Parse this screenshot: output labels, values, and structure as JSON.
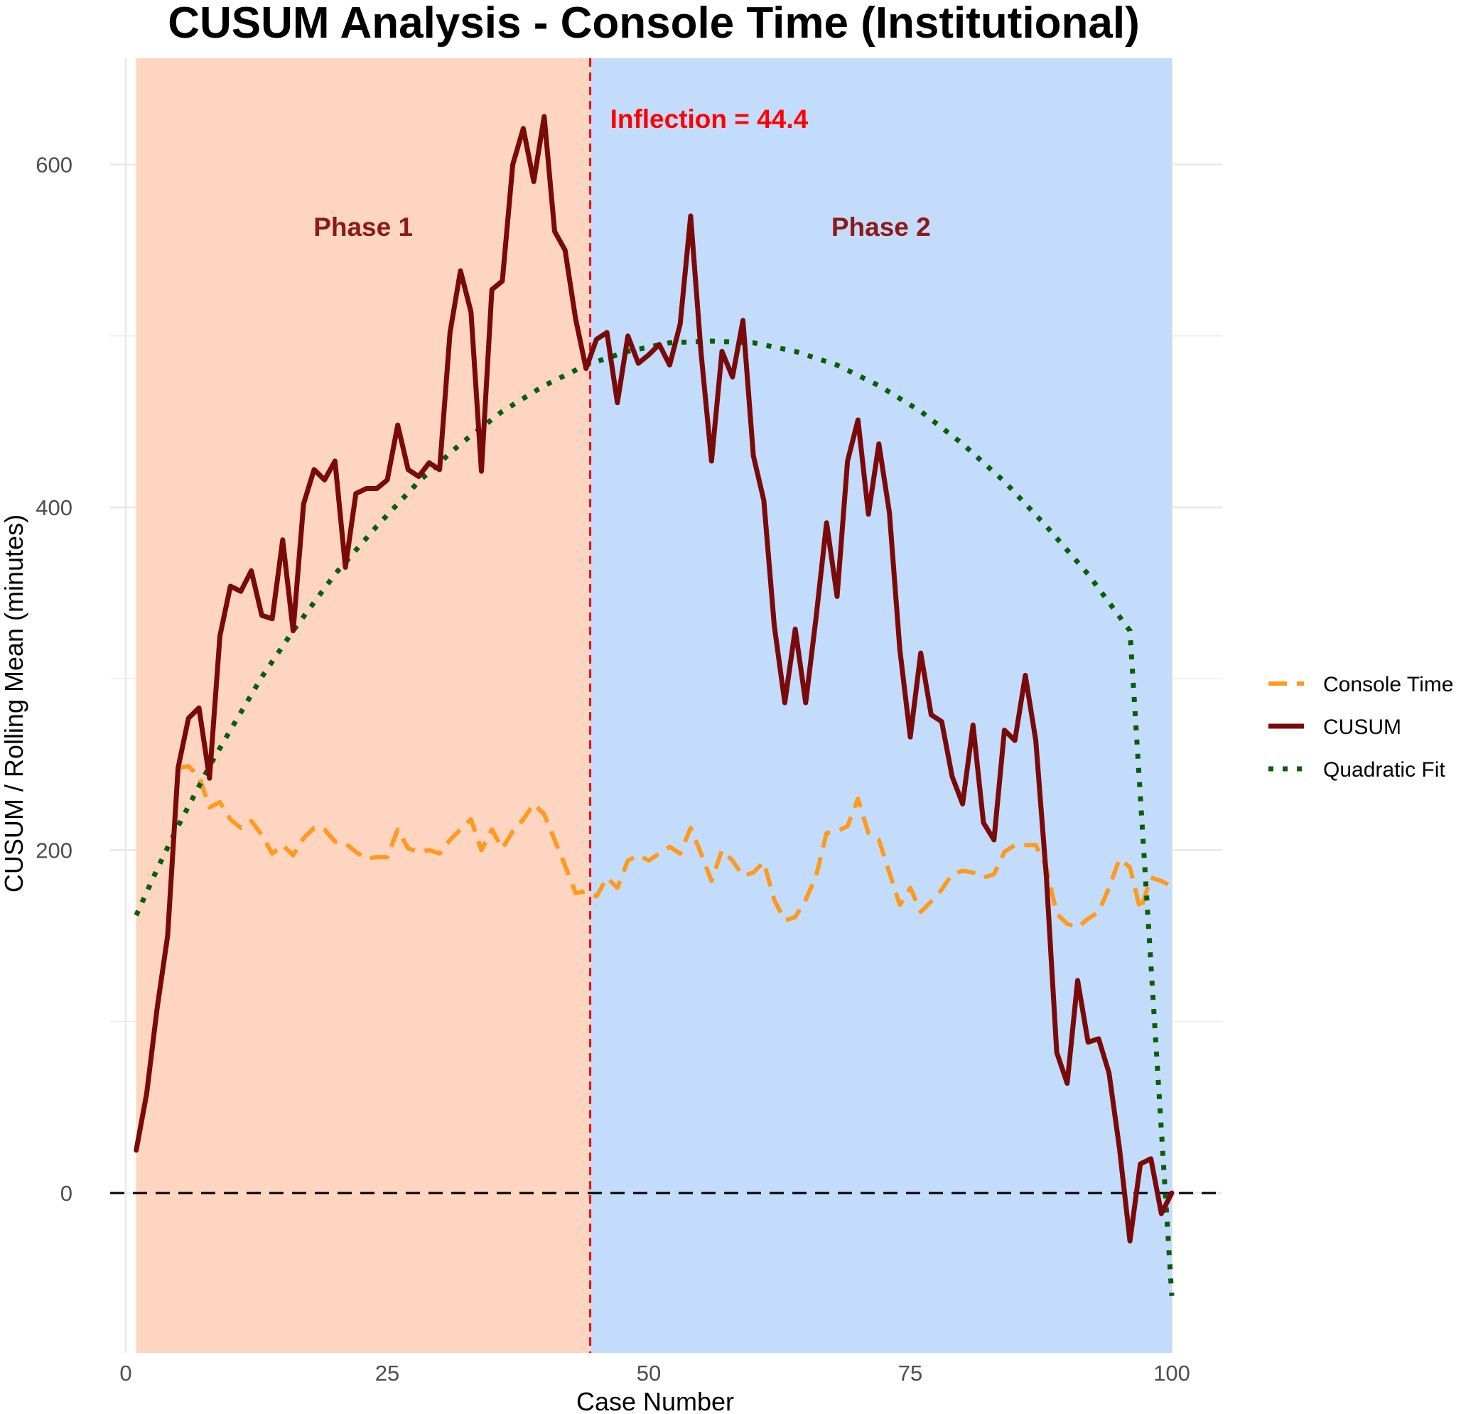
{
  "chart_data": {
    "type": "line",
    "title": "CUSUM Analysis - Console Time (Institutional)",
    "xlabel": "Case Number",
    "ylabel": "CUSUM / Rolling Mean (minutes)",
    "xlim": [
      0,
      100
    ],
    "ylim": [
      -90,
      655
    ],
    "x_ticks": [
      0,
      25,
      50,
      75,
      100
    ],
    "y_ticks": [
      0,
      200,
      400,
      600
    ],
    "grid": true,
    "legend_position": "right",
    "inflection": {
      "x": 44.4,
      "label": "Inflection = 44.4",
      "color": "#ff0000"
    },
    "zero_line": 0,
    "phases": [
      {
        "label": "Phase 1",
        "start": 1,
        "end": 44.4,
        "color": "#fdd5c0"
      },
      {
        "label": "Phase 2",
        "start": 44.4,
        "end": 100,
        "color": "#c4dcfb"
      }
    ],
    "series": [
      {
        "name": "Console Time",
        "style": "dashed",
        "color": "#ff9a1f",
        "x": [
          5,
          6,
          7,
          8,
          9,
          10,
          11,
          12,
          13,
          14,
          15,
          16,
          17,
          18,
          19,
          20,
          21,
          22,
          23,
          24,
          25,
          26,
          27,
          28,
          29,
          30,
          31,
          32,
          33,
          34,
          35,
          36,
          37,
          38,
          39,
          40,
          41,
          42,
          43,
          44,
          45,
          46,
          47,
          48,
          49,
          50,
          51,
          52,
          53,
          54,
          55,
          56,
          57,
          58,
          59,
          60,
          61,
          62,
          63,
          64,
          65,
          66,
          67,
          68,
          69,
          70,
          71,
          72,
          73,
          74,
          75,
          76,
          77,
          78,
          79,
          80,
          81,
          82,
          83,
          84,
          85,
          86,
          87,
          88,
          89,
          90,
          91,
          92,
          93,
          94,
          95,
          96,
          97,
          98,
          99,
          100
        ],
        "values": [
          248,
          249,
          243,
          225,
          228,
          218,
          213,
          217,
          209,
          198,
          203,
          197,
          207,
          213,
          212,
          205,
          204,
          199,
          195,
          196,
          196,
          212,
          201,
          199,
          200,
          198,
          206,
          212,
          218,
          200,
          212,
          201,
          211,
          218,
          227,
          221,
          206,
          191,
          175,
          176,
          173,
          184,
          178,
          194,
          197,
          194,
          198,
          202,
          198,
          213,
          198,
          182,
          200,
          194,
          185,
          187,
          193,
          171,
          159,
          161,
          171,
          185,
          210,
          211,
          214,
          230,
          210,
          206,
          187,
          168,
          178,
          164,
          170,
          177,
          186,
          188,
          187,
          184,
          186,
          199,
          203,
          203,
          203,
          190,
          163,
          157,
          155,
          160,
          164,
          178,
          195,
          190,
          165,
          184,
          182,
          179
        ]
      },
      {
        "name": "CUSUM",
        "style": "solid",
        "color": "#7a0a0a",
        "x": [
          1,
          2,
          3,
          4,
          5,
          6,
          7,
          8,
          9,
          10,
          11,
          12,
          13,
          14,
          15,
          16,
          17,
          18,
          19,
          20,
          21,
          22,
          23,
          24,
          25,
          26,
          27,
          28,
          29,
          30,
          31,
          32,
          33,
          34,
          35,
          36,
          37,
          38,
          39,
          40,
          41,
          42,
          43,
          44,
          45,
          46,
          47,
          48,
          49,
          50,
          51,
          52,
          53,
          54,
          55,
          56,
          57,
          58,
          59,
          60,
          61,
          62,
          63,
          64,
          65,
          66,
          67,
          68,
          69,
          70,
          71,
          72,
          73,
          74,
          75,
          76,
          77,
          78,
          79,
          80,
          81,
          82,
          83,
          84,
          85,
          86,
          87,
          88,
          89,
          90,
          91,
          92,
          93,
          94,
          95,
          96,
          97,
          98,
          99,
          100
        ],
        "values": [
          25,
          58,
          108,
          150,
          248,
          277,
          283,
          242,
          325,
          354,
          351,
          363,
          337,
          335,
          381,
          328,
          402,
          422,
          416,
          427,
          365,
          408,
          411,
          411,
          416,
          448,
          422,
          418,
          426,
          422,
          502,
          538,
          514,
          421,
          527,
          532,
          600,
          621,
          590,
          628,
          561,
          550,
          510,
          481,
          498,
          502,
          461,
          500,
          484,
          489,
          495,
          483,
          507,
          570,
          490,
          427,
          491,
          476,
          509,
          430,
          404,
          331,
          286,
          329,
          286,
          336,
          391,
          348,
          427,
          451,
          396,
          437,
          397,
          317,
          266,
          315,
          279,
          275,
          243,
          227,
          273,
          216,
          206,
          270,
          264,
          302,
          264,
          185,
          82,
          64,
          124,
          88,
          90,
          70,
          26,
          -28,
          17,
          20,
          -12,
          0
        ]
      },
      {
        "name": "Quadratic Fit",
        "style": "dotted",
        "color": "#0a5d0a",
        "x": [
          1,
          3,
          5,
          8,
          10,
          13,
          16,
          20,
          24,
          28,
          32,
          36,
          40,
          44,
          48,
          52,
          56,
          60,
          64,
          68,
          72,
          76,
          80,
          84,
          88,
          92,
          96,
          100
        ],
        "values": [
          162,
          189,
          214,
          249,
          270,
          301,
          328,
          361,
          389,
          415,
          437,
          456,
          471,
          483,
          491,
          496,
          497,
          496,
          491,
          483,
          471,
          456,
          437,
          415,
          389,
          361,
          328,
          -60
        ]
      }
    ]
  }
}
